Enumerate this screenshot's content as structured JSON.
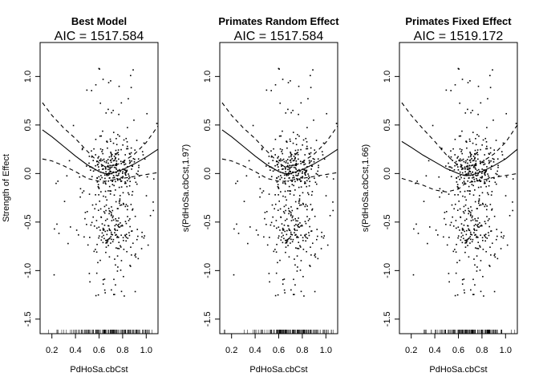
{
  "chart_data": [
    {
      "type": "line",
      "title": "Best Model",
      "subtitle": "AIC = 1517.584",
      "xlabel": "PdHoSa.cbCst",
      "ylabel": "Strength of Effect",
      "xlim": [
        0.1,
        1.1
      ],
      "ylim": [
        -1.65,
        1.35
      ],
      "xticks": [
        "0.2",
        "0.4",
        "0.6",
        "0.8",
        "1.0"
      ],
      "yticks": [
        "-1.5",
        "-1.0",
        "-0.5",
        "0.0",
        "0.5",
        "1.0"
      ],
      "grid": false,
      "series": [
        {
          "style": "solid",
          "x": [
            0.12,
            0.2,
            0.3,
            0.4,
            0.5,
            0.6,
            0.65,
            0.7,
            0.8,
            0.9,
            1.0,
            1.1
          ],
          "y": [
            0.45,
            0.38,
            0.28,
            0.18,
            0.09,
            0.02,
            0.0,
            0.0,
            0.04,
            0.1,
            0.17,
            0.25
          ]
        },
        {
          "style": "dashed",
          "x": [
            0.12,
            0.2,
            0.3,
            0.4,
            0.5,
            0.6,
            0.65,
            0.7,
            0.8,
            0.9,
            1.0,
            1.1
          ],
          "y": [
            0.73,
            0.6,
            0.47,
            0.36,
            0.23,
            0.11,
            0.07,
            0.06,
            0.12,
            0.2,
            0.32,
            0.49
          ]
        },
        {
          "style": "dashed",
          "x": [
            0.12,
            0.2,
            0.3,
            0.4,
            0.5,
            0.6,
            0.65,
            0.7,
            0.8,
            0.9,
            1.0,
            1.1
          ],
          "y": [
            0.15,
            0.13,
            0.08,
            0.02,
            -0.05,
            -0.08,
            -0.08,
            -0.07,
            -0.05,
            -0.03,
            -0.01,
            0.01
          ]
        }
      ]
    },
    {
      "type": "line",
      "title": "Primates Random Effect",
      "subtitle": "AIC = 1517.584",
      "xlabel": "PdHoSa.cbCst",
      "ylabel": "s(PdHoSa.cbCst,1.97)",
      "xlim": [
        0.1,
        1.1
      ],
      "ylim": [
        -1.65,
        1.35
      ],
      "xticks": [
        "0.2",
        "0.4",
        "0.6",
        "0.8",
        "1.0"
      ],
      "yticks": [
        "-1.5",
        "-1.0",
        "-0.5",
        "0.0",
        "0.5",
        "1.0"
      ],
      "grid": false,
      "series": [
        {
          "style": "solid",
          "x": [
            0.12,
            0.2,
            0.3,
            0.4,
            0.5,
            0.6,
            0.65,
            0.7,
            0.8,
            0.9,
            1.0,
            1.1
          ],
          "y": [
            0.45,
            0.38,
            0.28,
            0.18,
            0.09,
            0.02,
            0.0,
            0.0,
            0.04,
            0.1,
            0.17,
            0.25
          ]
        },
        {
          "style": "dashed",
          "x": [
            0.12,
            0.2,
            0.3,
            0.4,
            0.5,
            0.6,
            0.65,
            0.7,
            0.8,
            0.9,
            1.0,
            1.1
          ],
          "y": [
            0.73,
            0.6,
            0.47,
            0.36,
            0.23,
            0.11,
            0.07,
            0.06,
            0.12,
            0.2,
            0.32,
            0.49
          ]
        },
        {
          "style": "dashed",
          "x": [
            0.12,
            0.2,
            0.3,
            0.4,
            0.5,
            0.6,
            0.65,
            0.7,
            0.8,
            0.9,
            1.0,
            1.1
          ],
          "y": [
            0.15,
            0.13,
            0.08,
            0.02,
            -0.05,
            -0.08,
            -0.08,
            -0.07,
            -0.05,
            -0.03,
            -0.01,
            0.01
          ]
        }
      ]
    },
    {
      "type": "line",
      "title": "Primates Fixed Effect",
      "subtitle": "AIC = 1519.172",
      "xlabel": "PdHoSa.cbCst",
      "ylabel": "s(PdHoSa.cbCst,1.66)",
      "xlim": [
        0.1,
        1.1
      ],
      "ylim": [
        -1.65,
        1.35
      ],
      "xticks": [
        "0.2",
        "0.4",
        "0.6",
        "0.8",
        "1.0"
      ],
      "yticks": [
        "-1.5",
        "-1.0",
        "-0.5",
        "0.0",
        "0.5",
        "1.0"
      ],
      "grid": false,
      "series": [
        {
          "style": "solid",
          "x": [
            0.12,
            0.2,
            0.3,
            0.4,
            0.5,
            0.6,
            0.65,
            0.7,
            0.8,
            0.9,
            1.0,
            1.1
          ],
          "y": [
            0.33,
            0.27,
            0.19,
            0.12,
            0.05,
            0.0,
            -0.02,
            -0.02,
            0.02,
            0.08,
            0.15,
            0.25
          ]
        },
        {
          "style": "dashed",
          "x": [
            0.12,
            0.2,
            0.3,
            0.4,
            0.5,
            0.6,
            0.65,
            0.7,
            0.8,
            0.9,
            1.0,
            1.1
          ],
          "y": [
            0.73,
            0.6,
            0.46,
            0.33,
            0.19,
            0.08,
            0.05,
            0.05,
            0.12,
            0.2,
            0.32,
            0.5
          ]
        },
        {
          "style": "dashed",
          "x": [
            0.12,
            0.2,
            0.3,
            0.4,
            0.5,
            0.6,
            0.65,
            0.7,
            0.8,
            0.9,
            1.0,
            1.1
          ],
          "y": [
            -0.05,
            -0.08,
            -0.12,
            -0.17,
            -0.19,
            -0.16,
            -0.11,
            -0.09,
            -0.07,
            -0.04,
            -0.02,
            0.0
          ]
        }
      ]
    }
  ]
}
